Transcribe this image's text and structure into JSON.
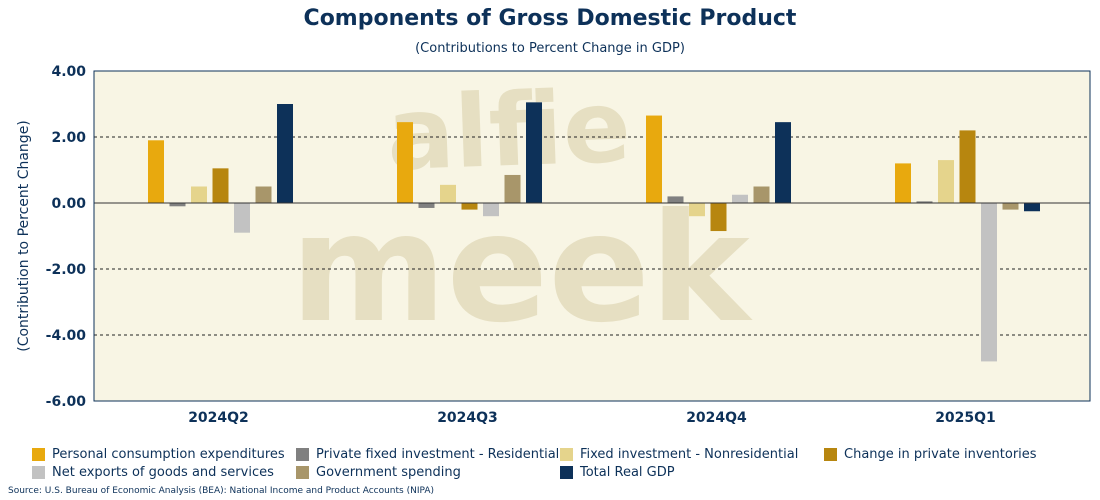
{
  "title": "Components of Gross Domestic Product",
  "subtitle": "(Contributions to Percent Change in GDP)",
  "source": "Source: U.S. Bureau of Economic Analysis (BEA): National Income and Product Accounts (NIPA)",
  "watermark": [
    "alfie",
    "meek"
  ],
  "colors": {
    "plot_background": "#f8f5e4",
    "axis": "#0d3159",
    "watermark": "#e6dfc2"
  },
  "chart_data": {
    "type": "bar",
    "title": "Components of Gross Domestic Product",
    "subtitle": "(Contributions to Percent Change in GDP)",
    "xlabel": "",
    "ylabel": "(Contribution to Percent Change)",
    "ylim": [
      -6,
      4
    ],
    "yticks": [
      4,
      2,
      0,
      -2,
      -4,
      -6
    ],
    "ytick_labels": [
      "4.00",
      "2.00",
      "0.00",
      "-2.00",
      "-4.00",
      "-6.00"
    ],
    "grid": "horizontal dashed",
    "legend_position": "bottom",
    "categories": [
      "2024Q2",
      "2024Q3",
      "2024Q4",
      "2025Q1"
    ],
    "series": [
      {
        "name": "Personal consumption expenditures",
        "color": "#e8a90e",
        "values": [
          1.9,
          2.45,
          2.65,
          1.2
        ]
      },
      {
        "name": "Private fixed investment - Residential",
        "color": "#808080",
        "values": [
          -0.1,
          -0.15,
          0.2,
          0.05
        ]
      },
      {
        "name": "Fixed investment - Nonresidential",
        "color": "#e5d48c",
        "values": [
          0.5,
          0.55,
          -0.4,
          1.3
        ]
      },
      {
        "name": "Change in private inventories",
        "color": "#b7860f",
        "values": [
          1.05,
          -0.2,
          -0.85,
          2.2
        ]
      },
      {
        "name": "Net exports of goods and services",
        "color": "#c2c2c2",
        "values": [
          -0.9,
          -0.4,
          0.25,
          -4.8
        ]
      },
      {
        "name": "Government spending",
        "color": "#a8966a",
        "values": [
          0.5,
          0.85,
          0.5,
          -0.2
        ]
      },
      {
        "name": "Total Real GDP",
        "color": "#0d3159",
        "values": [
          3.0,
          3.05,
          2.45,
          -0.25
        ]
      }
    ]
  }
}
